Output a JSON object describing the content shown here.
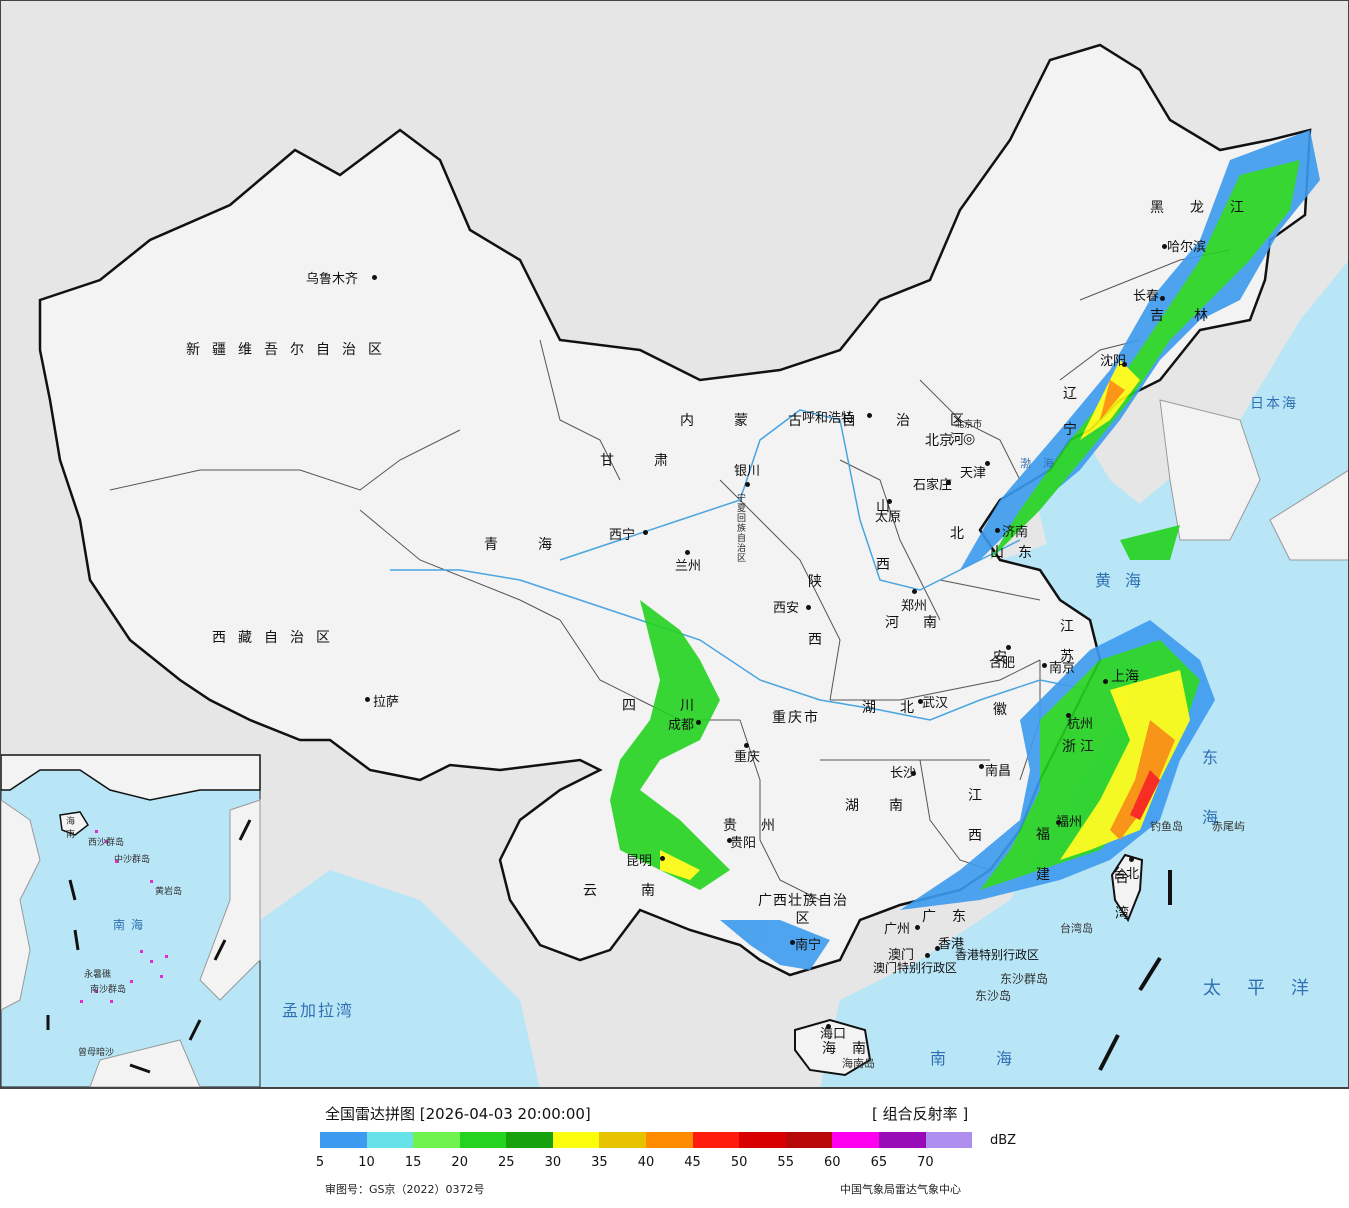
{
  "map": {
    "provinces": [
      {
        "name": "新疆维吾尔自治区"
      },
      {
        "name": "西藏自治区"
      },
      {
        "name": "青海"
      },
      {
        "name": "甘肃"
      },
      {
        "name": "四川"
      },
      {
        "name": "云南"
      },
      {
        "name": "贵州"
      },
      {
        "name": "重庆市"
      },
      {
        "name": "湖北"
      },
      {
        "name": "湖南"
      },
      {
        "name": "江西"
      },
      {
        "name": "河南"
      },
      {
        "name": "陕西"
      },
      {
        "name": "山西"
      },
      {
        "name": "安徽"
      },
      {
        "name": "江苏"
      },
      {
        "name": "浙江"
      },
      {
        "name": "福建"
      },
      {
        "name": "广东"
      },
      {
        "name": "广西壮族自治区"
      },
      {
        "name": "海南"
      },
      {
        "name": "山东"
      },
      {
        "name": "河北"
      },
      {
        "name": "辽宁"
      },
      {
        "name": "吉林"
      },
      {
        "name": "黑龙江"
      },
      {
        "name": "内蒙古自治区"
      },
      {
        "name": "宁夏回族自治区"
      },
      {
        "name": "台湾"
      }
    ],
    "cities": [
      {
        "name": "乌鲁木齐"
      },
      {
        "name": "拉萨"
      },
      {
        "name": "西宁"
      },
      {
        "name": "兰州"
      },
      {
        "name": "银川"
      },
      {
        "name": "呼和浩特"
      },
      {
        "name": "北京"
      },
      {
        "name": "天津"
      },
      {
        "name": "石家庄"
      },
      {
        "name": "太原"
      },
      {
        "name": "西安"
      },
      {
        "name": "郑州"
      },
      {
        "name": "济南"
      },
      {
        "name": "合肥"
      },
      {
        "name": "南京"
      },
      {
        "name": "上海"
      },
      {
        "name": "杭州"
      },
      {
        "name": "武汉"
      },
      {
        "name": "成都"
      },
      {
        "name": "重庆"
      },
      {
        "name": "贵阳"
      },
      {
        "name": "昆明"
      },
      {
        "name": "长沙"
      },
      {
        "name": "南昌"
      },
      {
        "name": "福州"
      },
      {
        "name": "台北"
      },
      {
        "name": "广州"
      },
      {
        "name": "香港"
      },
      {
        "name": "澳门"
      },
      {
        "name": "南宁"
      },
      {
        "name": "海口"
      },
      {
        "name": "沈阳"
      },
      {
        "name": "长春"
      },
      {
        "name": "哈尔滨"
      },
      {
        "name": "北京市"
      }
    ],
    "seas": {
      "japan_sea": "日本海",
      "yellow_sea": "黄海",
      "east_sea": "东海",
      "south_sea": "南海",
      "pacific": "太平洋",
      "bay_of_bengal": "孟加拉湾",
      "bohai": "渤海"
    },
    "islands": {
      "hk": "香港特别行政区",
      "macau": "澳门特别行政区",
      "dongsha_islands": "东沙群岛",
      "dongsha_island": "东沙岛",
      "taiwan_island": "台湾岛",
      "hainan_island": "海南岛",
      "diaoyu": "钓鱼岛",
      "chiwei": "赤尾屿"
    },
    "inset": {
      "south_sea": "南海",
      "hainan": "海南",
      "xisha": "西沙群岛",
      "zhongsha": "中沙群岛",
      "huangyan": "黄岩岛",
      "nansha": "南沙群岛",
      "zengmu": "曾母暗沙",
      "yongshu": "永暑礁"
    },
    "colors": {
      "land": "#f3f3f3",
      "sea": "#b9e6f7",
      "outside": "#e6e6e6",
      "border": "#111111",
      "river": "#49a5df"
    }
  },
  "legend": {
    "title": "全国雷达拼图 [2026-04-03 20:00:00]",
    "product": "[ 组合反射率 ]",
    "unit": "dBZ",
    "ticks": [
      "5",
      "10",
      "15",
      "20",
      "25",
      "30",
      "35",
      "40",
      "45",
      "50",
      "55",
      "60",
      "65",
      "70"
    ],
    "colors": [
      "#3d9bef",
      "#66e1e8",
      "#70f24f",
      "#24d31f",
      "#16a10d",
      "#fcfc0d",
      "#e6c200",
      "#ff8c00",
      "#ff1a0d",
      "#d80000",
      "#b80808",
      "#ff00f0",
      "#980cb8",
      "#ae8ff0"
    ],
    "approval": "审图号：GS京（2022）0372号",
    "center": "中国气象局雷达气象中心"
  }
}
